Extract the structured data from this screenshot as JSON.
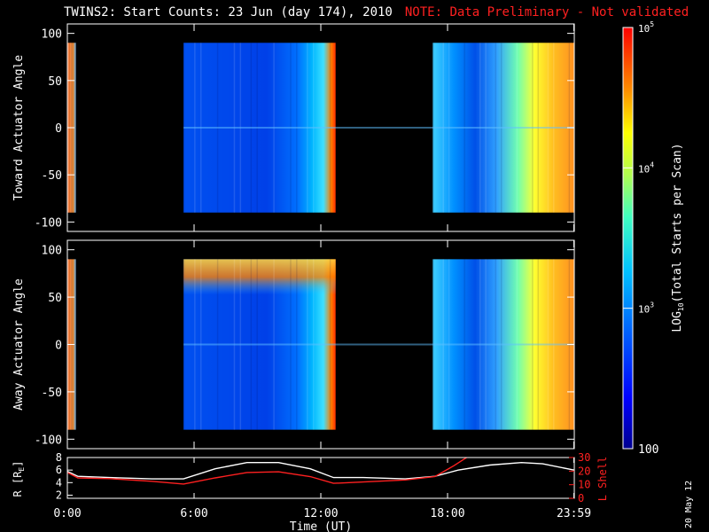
{
  "title": "TWINS2: Start Counts: 23 Jun (day 174), 2010",
  "note": "NOTE: Data Preliminary - Not validated",
  "date_stamp": "20 May 12",
  "colors": {
    "background": "#000000",
    "axes": "#ffffff",
    "note": "#ff2020",
    "r_trace": "#ffffff",
    "lshell_trace": "#ff2020"
  },
  "chart_data": [
    {
      "type": "heatmap",
      "ylabel": "Toward Actuator Angle",
      "ylim": [
        -110,
        110
      ],
      "yticks": [
        "100",
        "50",
        "0",
        "-50",
        "-100"
      ],
      "data_range": [
        -90,
        90
      ],
      "coverage_hours": [
        [
          0.0,
          0.4
        ],
        [
          5.5,
          12.7
        ],
        [
          17.3,
          24.0
        ]
      ],
      "colorscale": "log"
    },
    {
      "type": "heatmap",
      "ylabel": "Away Actuator Angle",
      "ylim": [
        -110,
        110
      ],
      "yticks": [
        "100",
        "50",
        "0",
        "-50",
        "-100"
      ],
      "data_range": [
        -90,
        90
      ],
      "coverage_hours": [
        [
          0.0,
          0.4
        ],
        [
          5.5,
          12.7
        ],
        [
          17.3,
          24.0
        ]
      ],
      "colorscale": "log"
    },
    {
      "type": "line",
      "ylabel": "R [R",
      "ylabel_sub": "E",
      "ylabel_end": "]",
      "yticks": [
        "8",
        "6",
        "4",
        "2"
      ],
      "ylim": [
        1.5,
        8.0
      ],
      "y2label": "L Shell",
      "y2ticks": [
        "30",
        "20",
        "10",
        "0"
      ],
      "y2lim": [
        0,
        30
      ],
      "xlabel": "Time (UT)",
      "xticks": [
        "0:00",
        "6:00",
        "12:00",
        "18:00",
        "23:59"
      ],
      "xtick_hours": [
        0,
        6,
        12,
        18,
        23.98
      ],
      "xlim": [
        0,
        24
      ],
      "series": [
        {
          "color": "#ffffff",
          "x": [
            0,
            0.5,
            2,
            4,
            5.5,
            7,
            8.5,
            10,
            11.5,
            12.6,
            14,
            16,
            17.4,
            18.5,
            20,
            21.5,
            22.5,
            24
          ],
          "y": [
            5.8,
            5.0,
            4.8,
            4.6,
            4.6,
            6.2,
            7.2,
            7.2,
            6.2,
            4.8,
            4.8,
            4.6,
            5.0,
            6.0,
            6.8,
            7.2,
            7.0,
            6.0
          ]
        },
        {
          "color": "#ff2020",
          "axis": "right",
          "x": [
            0,
            0.5,
            2,
            4,
            5.5,
            7,
            8.5,
            10,
            11.5,
            12.6,
            14,
            16,
            17.4,
            18.3,
            19.0
          ],
          "y": [
            19,
            15,
            14.5,
            12.5,
            10.5,
            15,
            19,
            19.5,
            16,
            11,
            12,
            13.5,
            16,
            24,
            31
          ]
        }
      ]
    }
  ],
  "colorbar": {
    "label_main": "LOG",
    "label_sub": "10",
    "label_rest": "(Total Starts per Scan)",
    "ticks": [
      {
        "base": "10",
        "exp": "5",
        "value": 100000
      },
      {
        "base": "10",
        "exp": "4",
        "value": 10000
      },
      {
        "base": "10",
        "exp": "3",
        "value": 1000
      },
      {
        "base": "100",
        "exp": "",
        "value": 100
      }
    ],
    "range": [
      100,
      100000
    ]
  }
}
